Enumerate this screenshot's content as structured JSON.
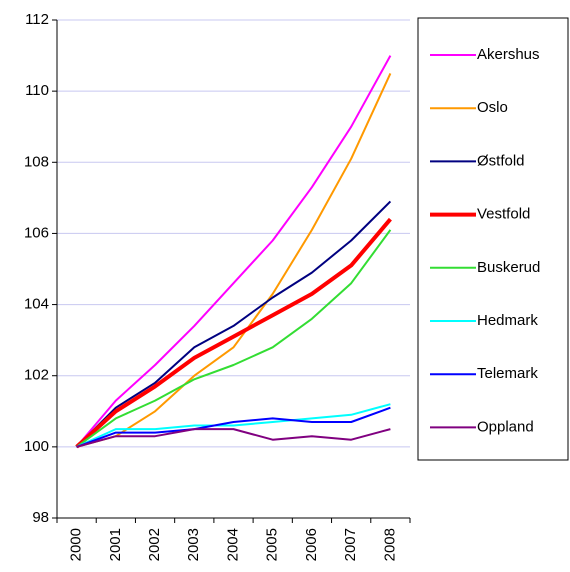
{
  "chart_data": {
    "type": "line",
    "categories": [
      "2000",
      "2001",
      "2002",
      "2003",
      "2004",
      "2005",
      "2006",
      "2007",
      "2008"
    ],
    "series": [
      {
        "name": "Akershus",
        "color": "#ff00ff",
        "line_width": 2,
        "values": [
          100,
          101.3,
          102.3,
          103.4,
          104.6,
          105.8,
          107.3,
          109.0,
          111.0
        ]
      },
      {
        "name": "Oslo",
        "color": "#ff9900",
        "line_width": 2,
        "values": [
          100,
          100.3,
          101.0,
          102.0,
          102.8,
          104.3,
          106.1,
          108.1,
          110.5
        ]
      },
      {
        "name": "Østfold",
        "color": "#000080",
        "line_width": 2,
        "values": [
          100,
          101.1,
          101.8,
          102.8,
          103.4,
          104.2,
          104.9,
          105.8,
          106.9
        ]
      },
      {
        "name": "Vestfold",
        "color": "#ff0000",
        "line_width": 4,
        "values": [
          100,
          101.0,
          101.7,
          102.5,
          103.1,
          103.7,
          104.3,
          105.1,
          106.4
        ]
      },
      {
        "name": "Buskerud",
        "color": "#33dd33",
        "line_width": 2,
        "values": [
          100,
          100.8,
          101.3,
          101.9,
          102.3,
          102.8,
          103.6,
          104.6,
          106.1
        ]
      },
      {
        "name": "Hedmark",
        "color": "#00ffff",
        "line_width": 2,
        "values": [
          100,
          100.5,
          100.5,
          100.6,
          100.6,
          100.7,
          100.8,
          100.9,
          101.2
        ]
      },
      {
        "name": "Telemark",
        "color": "#0000ff",
        "line_width": 2,
        "values": [
          100,
          100.4,
          100.4,
          100.5,
          100.7,
          100.8,
          100.7,
          100.7,
          101.1
        ]
      },
      {
        "name": "Oppland",
        "color": "#800080",
        "line_width": 2,
        "values": [
          100,
          100.3,
          100.3,
          100.5,
          100.5,
          100.2,
          100.3,
          100.2,
          100.5
        ]
      }
    ],
    "ylim": [
      98,
      112
    ],
    "yticks": [
      98,
      100,
      102,
      104,
      106,
      108,
      110,
      112
    ],
    "grid": true,
    "legend": "right"
  }
}
